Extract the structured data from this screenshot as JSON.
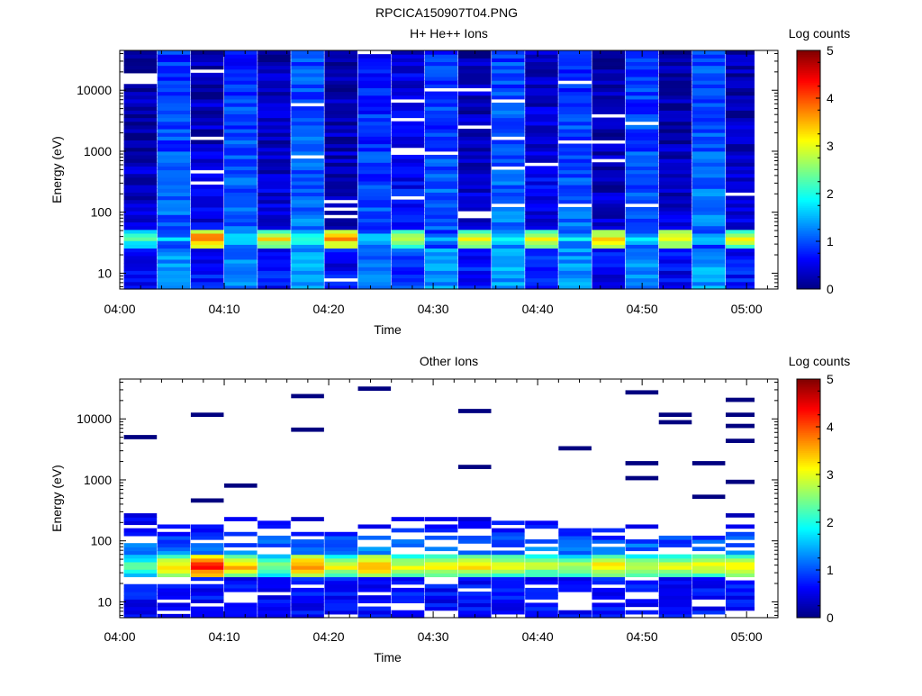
{
  "figure": {
    "title": "RPCICA150907T04.PNG",
    "colorbar_label": "Log counts"
  },
  "colors": {
    "colormap": [
      "#000080",
      "#0000ff",
      "#0080ff",
      "#00ffff",
      "#80ff80",
      "#ffff00",
      "#ff8000",
      "#ff0000",
      "#800000"
    ]
  },
  "chart_data": [
    {
      "type": "heatmap",
      "title": "H+ He++ Ions",
      "xlabel": "Time",
      "ylabel": "Energy (eV)",
      "y_scale": "log",
      "ylim": [
        5.5,
        45000
      ],
      "y_ticks": [
        10,
        100,
        1000,
        10000
      ],
      "y_tick_labels": [
        "10",
        "100",
        "1000",
        "10000"
      ],
      "x_ticks": [
        "04:00",
        "04:10",
        "04:20",
        "04:30",
        "04:40",
        "04:50",
        "05:00"
      ],
      "x_start": "04:00",
      "x_end": "05:03",
      "bin_width_minutes": 3.2,
      "colorbar": {
        "label": "Log counts",
        "range": [
          0,
          5
        ],
        "ticks": [
          "0",
          "1",
          "2",
          "3",
          "4",
          "5"
        ]
      },
      "peak_band_eV": [
        25,
        55
      ],
      "peak_log_counts_by_column": [
        2.4,
        1.6,
        3.9,
        1.9,
        3.2,
        2.3,
        3.6,
        1.8,
        3.0,
        1.7,
        3.2,
        2.0,
        3.1,
        1.8,
        3.4,
        1.9,
        3.3,
        1.8,
        3.1
      ],
      "background_log_counts_by_column": [
        0.4,
        1.1,
        0.5,
        1.1,
        0.5,
        1.2,
        0.4,
        1.0,
        0.7,
        1.1,
        0.5,
        1.2,
        0.6,
        1.1,
        0.4,
        1.1,
        0.4,
        1.2,
        0.5
      ]
    },
    {
      "type": "heatmap",
      "title": "Other Ions",
      "xlabel": "Time",
      "ylabel": "Energy (eV)",
      "y_scale": "log",
      "ylim": [
        5.5,
        45000
      ],
      "y_ticks": [
        10,
        100,
        1000,
        10000
      ],
      "y_tick_labels": [
        "10",
        "100",
        "1000",
        "10000"
      ],
      "x_ticks": [
        "04:00",
        "04:10",
        "04:20",
        "04:30",
        "04:40",
        "04:50",
        "05:00"
      ],
      "x_start": "04:00",
      "x_end": "05:03",
      "bin_width_minutes": 3.2,
      "colorbar": {
        "label": "Log counts",
        "range": [
          0,
          5
        ],
        "ticks": [
          "0",
          "1",
          "2",
          "3",
          "4",
          "5"
        ]
      },
      "peak_band_eV": [
        25,
        60
      ],
      "peak_log_counts_by_column": [
        2.6,
        3.4,
        4.4,
        3.6,
        2.7,
        3.9,
        3.2,
        3.7,
        3.1,
        3.3,
        3.4,
        3.2,
        3.0,
        2.9,
        3.4,
        3.1,
        3.1,
        3.2,
        3.4
      ]
    }
  ]
}
